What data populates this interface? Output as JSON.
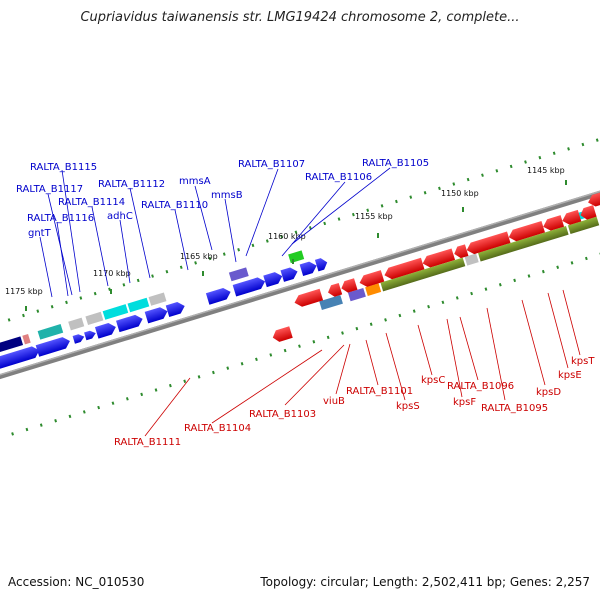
{
  "header": {
    "title": "Cupriavidus taiwanensis str. LMG19424 chromosome 2, complete..."
  },
  "footer": {
    "accession": "Accession: NC_010530",
    "topology": "Topology: circular; Length: 2,502,411 bp; Genes: 2,257"
  },
  "colors": {
    "forward": "#0000ee",
    "reverse": "#ee0000",
    "backbone": "#808080",
    "cyan": "#00dddd",
    "purple": "#6a5acd",
    "olive": "#6b8e23",
    "orange": "#ff8c00",
    "green": "#22cc22",
    "gray": "#c0c0c0",
    "steel": "#4682b4"
  },
  "kbp_labels": [
    "1145 kbp",
    "1150 kbp",
    "1155 kbp",
    "1160 kbp",
    "1165 kbp",
    "1170 kbp",
    "1175 kbp"
  ],
  "top_labels": [
    "RALTA_B1115",
    "RALTA_B1117",
    "RALTA_B1114",
    "RALTA_B1116",
    "gntT",
    "RALTA_B1112",
    "adhC",
    "mmsA",
    "mmsB",
    "RALTA_B1110",
    "RALTA_B1107",
    "RALTA_B1106",
    "RALTA_B1105"
  ],
  "bottom_labels": [
    "kpsT",
    "kpsE",
    "kpsD",
    "RALTA_B1095",
    "RALTA_B1096",
    "kpsF",
    "kpsC",
    "kpsS",
    "RALTA_B1101",
    "viuB",
    "RALTA_B1103",
    "RALTA_B1104",
    "RALTA_B1111"
  ]
}
